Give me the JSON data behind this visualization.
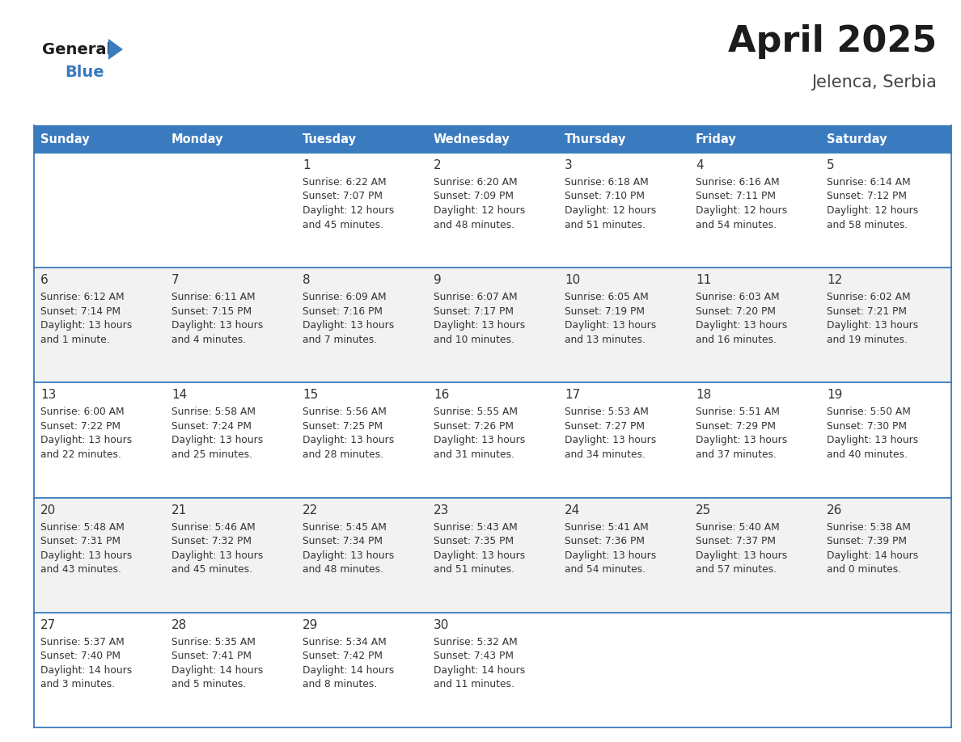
{
  "title": "April 2025",
  "subtitle": "Jelenca, Serbia",
  "header_color": "#3a7abf",
  "header_text_color": "#ffffff",
  "row_colors": [
    "#ffffff",
    "#f2f2f2"
  ],
  "border_color": "#3a7abf",
  "text_color": "#333333",
  "day_names": [
    "Sunday",
    "Monday",
    "Tuesday",
    "Wednesday",
    "Thursday",
    "Friday",
    "Saturday"
  ],
  "weeks": [
    [
      {
        "day": "",
        "lines": []
      },
      {
        "day": "",
        "lines": []
      },
      {
        "day": "1",
        "lines": [
          "Sunrise: 6:22 AM",
          "Sunset: 7:07 PM",
          "Daylight: 12 hours",
          "and 45 minutes."
        ]
      },
      {
        "day": "2",
        "lines": [
          "Sunrise: 6:20 AM",
          "Sunset: 7:09 PM",
          "Daylight: 12 hours",
          "and 48 minutes."
        ]
      },
      {
        "day": "3",
        "lines": [
          "Sunrise: 6:18 AM",
          "Sunset: 7:10 PM",
          "Daylight: 12 hours",
          "and 51 minutes."
        ]
      },
      {
        "day": "4",
        "lines": [
          "Sunrise: 6:16 AM",
          "Sunset: 7:11 PM",
          "Daylight: 12 hours",
          "and 54 minutes."
        ]
      },
      {
        "day": "5",
        "lines": [
          "Sunrise: 6:14 AM",
          "Sunset: 7:12 PM",
          "Daylight: 12 hours",
          "and 58 minutes."
        ]
      }
    ],
    [
      {
        "day": "6",
        "lines": [
          "Sunrise: 6:12 AM",
          "Sunset: 7:14 PM",
          "Daylight: 13 hours",
          "and 1 minute."
        ]
      },
      {
        "day": "7",
        "lines": [
          "Sunrise: 6:11 AM",
          "Sunset: 7:15 PM",
          "Daylight: 13 hours",
          "and 4 minutes."
        ]
      },
      {
        "day": "8",
        "lines": [
          "Sunrise: 6:09 AM",
          "Sunset: 7:16 PM",
          "Daylight: 13 hours",
          "and 7 minutes."
        ]
      },
      {
        "day": "9",
        "lines": [
          "Sunrise: 6:07 AM",
          "Sunset: 7:17 PM",
          "Daylight: 13 hours",
          "and 10 minutes."
        ]
      },
      {
        "day": "10",
        "lines": [
          "Sunrise: 6:05 AM",
          "Sunset: 7:19 PM",
          "Daylight: 13 hours",
          "and 13 minutes."
        ]
      },
      {
        "day": "11",
        "lines": [
          "Sunrise: 6:03 AM",
          "Sunset: 7:20 PM",
          "Daylight: 13 hours",
          "and 16 minutes."
        ]
      },
      {
        "day": "12",
        "lines": [
          "Sunrise: 6:02 AM",
          "Sunset: 7:21 PM",
          "Daylight: 13 hours",
          "and 19 minutes."
        ]
      }
    ],
    [
      {
        "day": "13",
        "lines": [
          "Sunrise: 6:00 AM",
          "Sunset: 7:22 PM",
          "Daylight: 13 hours",
          "and 22 minutes."
        ]
      },
      {
        "day": "14",
        "lines": [
          "Sunrise: 5:58 AM",
          "Sunset: 7:24 PM",
          "Daylight: 13 hours",
          "and 25 minutes."
        ]
      },
      {
        "day": "15",
        "lines": [
          "Sunrise: 5:56 AM",
          "Sunset: 7:25 PM",
          "Daylight: 13 hours",
          "and 28 minutes."
        ]
      },
      {
        "day": "16",
        "lines": [
          "Sunrise: 5:55 AM",
          "Sunset: 7:26 PM",
          "Daylight: 13 hours",
          "and 31 minutes."
        ]
      },
      {
        "day": "17",
        "lines": [
          "Sunrise: 5:53 AM",
          "Sunset: 7:27 PM",
          "Daylight: 13 hours",
          "and 34 minutes."
        ]
      },
      {
        "day": "18",
        "lines": [
          "Sunrise: 5:51 AM",
          "Sunset: 7:29 PM",
          "Daylight: 13 hours",
          "and 37 minutes."
        ]
      },
      {
        "day": "19",
        "lines": [
          "Sunrise: 5:50 AM",
          "Sunset: 7:30 PM",
          "Daylight: 13 hours",
          "and 40 minutes."
        ]
      }
    ],
    [
      {
        "day": "20",
        "lines": [
          "Sunrise: 5:48 AM",
          "Sunset: 7:31 PM",
          "Daylight: 13 hours",
          "and 43 minutes."
        ]
      },
      {
        "day": "21",
        "lines": [
          "Sunrise: 5:46 AM",
          "Sunset: 7:32 PM",
          "Daylight: 13 hours",
          "and 45 minutes."
        ]
      },
      {
        "day": "22",
        "lines": [
          "Sunrise: 5:45 AM",
          "Sunset: 7:34 PM",
          "Daylight: 13 hours",
          "and 48 minutes."
        ]
      },
      {
        "day": "23",
        "lines": [
          "Sunrise: 5:43 AM",
          "Sunset: 7:35 PM",
          "Daylight: 13 hours",
          "and 51 minutes."
        ]
      },
      {
        "day": "24",
        "lines": [
          "Sunrise: 5:41 AM",
          "Sunset: 7:36 PM",
          "Daylight: 13 hours",
          "and 54 minutes."
        ]
      },
      {
        "day": "25",
        "lines": [
          "Sunrise: 5:40 AM",
          "Sunset: 7:37 PM",
          "Daylight: 13 hours",
          "and 57 minutes."
        ]
      },
      {
        "day": "26",
        "lines": [
          "Sunrise: 5:38 AM",
          "Sunset: 7:39 PM",
          "Daylight: 14 hours",
          "and 0 minutes."
        ]
      }
    ],
    [
      {
        "day": "27",
        "lines": [
          "Sunrise: 5:37 AM",
          "Sunset: 7:40 PM",
          "Daylight: 14 hours",
          "and 3 minutes."
        ]
      },
      {
        "day": "28",
        "lines": [
          "Sunrise: 5:35 AM",
          "Sunset: 7:41 PM",
          "Daylight: 14 hours",
          "and 5 minutes."
        ]
      },
      {
        "day": "29",
        "lines": [
          "Sunrise: 5:34 AM",
          "Sunset: 7:42 PM",
          "Daylight: 14 hours",
          "and 8 minutes."
        ]
      },
      {
        "day": "30",
        "lines": [
          "Sunrise: 5:32 AM",
          "Sunset: 7:43 PM",
          "Daylight: 14 hours",
          "and 11 minutes."
        ]
      },
      {
        "day": "",
        "lines": []
      },
      {
        "day": "",
        "lines": []
      },
      {
        "day": "",
        "lines": []
      }
    ]
  ],
  "fig_width": 11.88,
  "fig_height": 9.18,
  "dpi": 100
}
